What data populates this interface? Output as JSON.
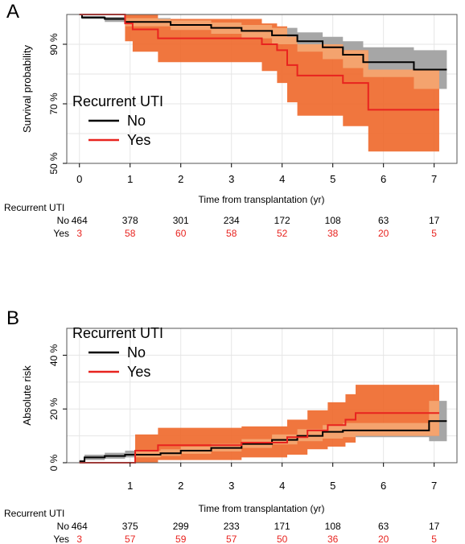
{
  "chart_data": [
    {
      "type": "line",
      "panel_label": "A",
      "xlabel": "Time from transplantation (yr)",
      "ylabel": "Survival probability",
      "xlim": [
        -0.25,
        7.45
      ],
      "ylim": [
        50,
        100
      ],
      "x_ticks": [
        "0",
        "1",
        "2",
        "3",
        "4",
        "5",
        "6",
        "7"
      ],
      "y_ticks": [
        "50 %",
        "70 %",
        "90 %"
      ],
      "grid": true,
      "legend": {
        "title": "Recurrent UTI",
        "items": [
          {
            "label": "No",
            "color": "#000000"
          },
          {
            "label": "Yes",
            "color": "#e8231f"
          }
        ],
        "position": "bottom-left"
      },
      "series": [
        {
          "name": "No",
          "color": "#000000",
          "ci_color": "#a6a6a6",
          "steps": [
            [
              0,
              100
            ],
            [
              0.05,
              99
            ],
            [
              0.5,
              98.5
            ],
            [
              0.9,
              97.5
            ],
            [
              1.8,
              96.5
            ],
            [
              2.6,
              95.5
            ],
            [
              3.2,
              94.5
            ],
            [
              3.8,
              93
            ],
            [
              4.3,
              91
            ],
            [
              4.8,
              89
            ],
            [
              5.2,
              86.5
            ],
            [
              5.6,
              84
            ],
            [
              6.6,
              81.5
            ],
            [
              7.25,
              81.5
            ]
          ],
          "lower": [
            [
              0,
              100
            ],
            [
              0.05,
              98.5
            ],
            [
              0.5,
              97.5
            ],
            [
              0.9,
              96
            ],
            [
              1.8,
              94.8
            ],
            [
              2.6,
              93.5
            ],
            [
              3.2,
              92
            ],
            [
              3.8,
              90
            ],
            [
              4.3,
              87.5
            ],
            [
              4.8,
              85
            ],
            [
              5.2,
              82
            ],
            [
              5.6,
              79
            ],
            [
              6.6,
              75
            ],
            [
              7.25,
              75
            ]
          ],
          "upper": [
            [
              0,
              100
            ],
            [
              0.05,
              99.5
            ],
            [
              0.5,
              99.2
            ],
            [
              0.9,
              98.8
            ],
            [
              1.8,
              98
            ],
            [
              2.6,
              97.3
            ],
            [
              3.2,
              96.5
            ],
            [
              3.8,
              95.5
            ],
            [
              4.3,
              94
            ],
            [
              4.8,
              92.5
            ],
            [
              5.2,
              91
            ],
            [
              5.6,
              89
            ],
            [
              6.6,
              88
            ],
            [
              7.25,
              88
            ]
          ]
        },
        {
          "name": "Yes",
          "color": "#e8231f",
          "ci_color": "#ef6a2e",
          "steps": [
            [
              0,
              100
            ],
            [
              0.9,
              97
            ],
            [
              1.05,
              95
            ],
            [
              1.55,
              92
            ],
            [
              3.6,
              90
            ],
            [
              3.9,
              88
            ],
            [
              4.1,
              83
            ],
            [
              4.3,
              79.5
            ],
            [
              5.2,
              77
            ],
            [
              5.7,
              68
            ],
            [
              7.1,
              68
            ]
          ],
          "lower": [
            [
              0,
              100
            ],
            [
              0.9,
              91
            ],
            [
              1.05,
              87.5
            ],
            [
              1.55,
              84
            ],
            [
              3.6,
              81
            ],
            [
              3.9,
              77
            ],
            [
              4.1,
              70.5
            ],
            [
              4.3,
              66
            ],
            [
              5.2,
              62.5
            ],
            [
              5.7,
              54
            ],
            [
              7.1,
              54
            ]
          ],
          "upper": [
            [
              0,
              100
            ],
            [
              0.9,
              100
            ],
            [
              1.05,
              100
            ],
            [
              1.55,
              98.5
            ],
            [
              3.6,
              97
            ],
            [
              3.9,
              96
            ],
            [
              4.1,
              92.5
            ],
            [
              4.3,
              90
            ],
            [
              5.2,
              88
            ],
            [
              5.7,
              81.5
            ],
            [
              7.1,
              81.5
            ]
          ]
        }
      ],
      "risk_table": {
        "title": "Recurrent UTI",
        "times": [
          0,
          1,
          2,
          3,
          4,
          5,
          6,
          7
        ],
        "rows": [
          {
            "label": "No",
            "color": "#000000",
            "values": [
              "464",
              "378",
              "301",
              "234",
              "172",
              "108",
              "63",
              "17"
            ]
          },
          {
            "label": "Yes",
            "color": "#e8231f",
            "values": [
              "3",
              "58",
              "60",
              "58",
              "52",
              "38",
              "20",
              "5"
            ]
          }
        ]
      }
    },
    {
      "type": "line",
      "panel_label": "B",
      "xlabel": "Time from transplantation (yr)",
      "ylabel": "Absolute risk",
      "xlim": [
        -0.25,
        7.45
      ],
      "ylim": [
        0,
        50
      ],
      "x_ticks": [
        "1",
        "2",
        "3",
        "4",
        "5",
        "6",
        "7"
      ],
      "y_ticks": [
        "0 %",
        "20 %",
        "40 %"
      ],
      "grid": true,
      "legend": {
        "title": "Recurrent UTI",
        "items": [
          {
            "label": "No",
            "color": "#000000"
          },
          {
            "label": "Yes",
            "color": "#e8231f"
          }
        ],
        "position": "top-left"
      },
      "series": [
        {
          "name": "No",
          "color": "#000000",
          "ci_color": "#a6a6a6",
          "steps": [
            [
              0,
              0.5
            ],
            [
              0.1,
              2
            ],
            [
              0.5,
              2.5
            ],
            [
              0.9,
              3
            ],
            [
              1.6,
              3.5
            ],
            [
              2.0,
              4.5
            ],
            [
              2.6,
              5.5
            ],
            [
              3.2,
              7
            ],
            [
              3.8,
              8.5
            ],
            [
              4.3,
              10
            ],
            [
              4.8,
              11.5
            ],
            [
              5.2,
              12
            ],
            [
              5.6,
              12
            ],
            [
              6.9,
              15.5
            ],
            [
              7.25,
              15.5
            ]
          ],
          "lower": [
            [
              0,
              0
            ],
            [
              0.1,
              1
            ],
            [
              0.5,
              1.5
            ],
            [
              0.9,
              2
            ],
            [
              1.6,
              2.5
            ],
            [
              2.0,
              3.3
            ],
            [
              2.6,
              4.2
            ],
            [
              3.2,
              5.5
            ],
            [
              3.8,
              6.8
            ],
            [
              4.3,
              8
            ],
            [
              4.8,
              9
            ],
            [
              5.2,
              9.5
            ],
            [
              5.6,
              9.5
            ],
            [
              6.9,
              8
            ],
            [
              7.25,
              8
            ]
          ],
          "upper": [
            [
              0,
              1
            ],
            [
              0.1,
              3
            ],
            [
              0.5,
              3.7
            ],
            [
              0.9,
              4.5
            ],
            [
              1.6,
              5
            ],
            [
              2.0,
              6
            ],
            [
              2.6,
              7
            ],
            [
              3.2,
              8.8
            ],
            [
              3.8,
              10.5
            ],
            [
              4.3,
              12.5
            ],
            [
              4.8,
              14
            ],
            [
              5.2,
              14.8
            ],
            [
              5.6,
              14.8
            ],
            [
              6.9,
              23
            ],
            [
              7.25,
              23
            ]
          ]
        },
        {
          "name": "Yes",
          "color": "#e8231f",
          "ci_color": "#ef6a2e",
          "steps": [
            [
              0,
              0
            ],
            [
              1.1,
              4.5
            ],
            [
              1.55,
              6.5
            ],
            [
              3.2,
              7.5
            ],
            [
              4.1,
              9.5
            ],
            [
              4.5,
              12
            ],
            [
              4.9,
              14
            ],
            [
              5.25,
              16
            ],
            [
              5.45,
              18.5
            ],
            [
              7.1,
              18.5
            ]
          ],
          "lower": [
            [
              0,
              0
            ],
            [
              1.1,
              0
            ],
            [
              1.55,
              1
            ],
            [
              3.2,
              2
            ],
            [
              4.1,
              3
            ],
            [
              4.5,
              5
            ],
            [
              4.9,
              6
            ],
            [
              5.25,
              7.5
            ],
            [
              5.45,
              10
            ],
            [
              7.1,
              10
            ]
          ],
          "upper": [
            [
              0,
              0
            ],
            [
              1.1,
              10.5
            ],
            [
              1.55,
              13
            ],
            [
              3.2,
              13.5
            ],
            [
              4.1,
              16
            ],
            [
              4.5,
              19.5
            ],
            [
              4.9,
              22.5
            ],
            [
              5.25,
              25.5
            ],
            [
              5.45,
              29
            ],
            [
              7.1,
              29
            ]
          ]
        }
      ],
      "risk_table": {
        "title": "Recurrent UTI",
        "times": [
          0,
          1,
          2,
          3,
          4,
          5,
          6,
          7
        ],
        "rows": [
          {
            "label": "No",
            "color": "#000000",
            "values": [
              "464",
              "375",
              "299",
              "233",
              "171",
              "108",
              "63",
              "17"
            ]
          },
          {
            "label": "Yes",
            "color": "#e8231f",
            "values": [
              "3",
              "57",
              "59",
              "57",
              "50",
              "36",
              "20",
              "5"
            ]
          }
        ]
      }
    }
  ]
}
